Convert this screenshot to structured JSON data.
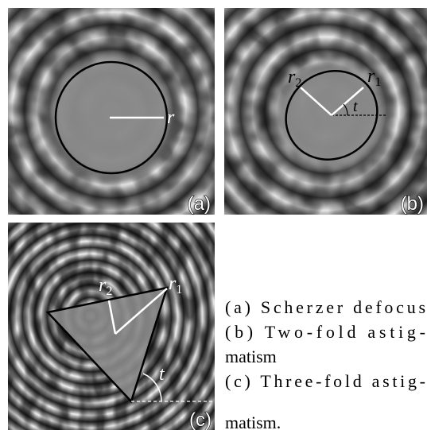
{
  "panels": [
    {
      "tag": "(a)",
      "labels": [
        {
          "symbol": "r"
        }
      ]
    },
    {
      "tag": "(b)",
      "labels": [
        {
          "symbol": "r",
          "subscript": "2"
        },
        {
          "symbol": "r",
          "subscript": "1"
        },
        {
          "symbol": "t"
        }
      ]
    },
    {
      "tag": "(c)",
      "labels": [
        {
          "symbol": "r",
          "subscript": "2"
        },
        {
          "symbol": "r",
          "subscript": "1"
        },
        {
          "symbol": "t"
        }
      ]
    }
  ],
  "caption": [
    "(a) Scherzer defocus",
    "(b) Two-fold astig-",
    "matism",
    "(c) Three-fold astig-",
    "matism."
  ]
}
